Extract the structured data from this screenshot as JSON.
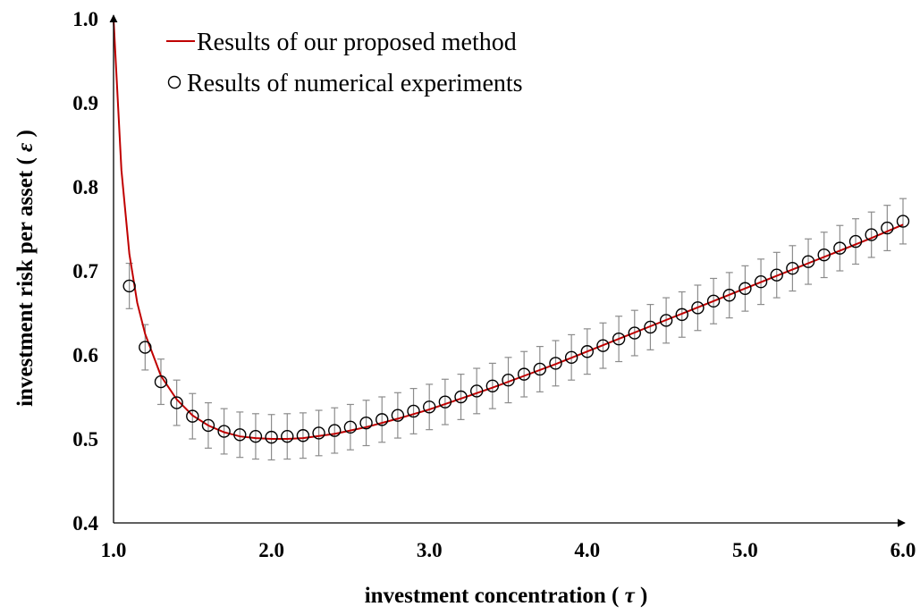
{
  "chart_data": {
    "type": "line",
    "xlabel": {
      "prefix": "investment concentration ( ",
      "symbol": "τ",
      "suffix": " )"
    },
    "ylabel": {
      "prefix": "investment risk per asset ( ",
      "symbol": "ε",
      "suffix": " )"
    },
    "xlim": [
      1.0,
      6.0
    ],
    "ylim": [
      0.4,
      1.0
    ],
    "x_ticks": [
      "1.0",
      "2.0",
      "3.0",
      "4.0",
      "5.0",
      "6.0"
    ],
    "y_ticks": [
      "0.4",
      "0.5",
      "0.6",
      "0.7",
      "0.8",
      "0.9",
      "1.0"
    ],
    "grid": false,
    "legend_position": "top-left",
    "series": [
      {
        "name": "Results of our proposed method",
        "kind": "line",
        "color": "#c00000",
        "x": [
          1.0,
          1.05,
          1.1,
          1.15,
          1.2,
          1.3,
          1.4,
          1.5,
          1.6,
          1.7,
          1.8,
          1.9,
          2.0,
          2.1,
          2.2,
          2.4,
          2.6,
          2.8,
          3.0,
          3.2,
          3.4,
          3.6,
          3.8,
          4.0,
          4.2,
          4.4,
          4.6,
          4.8,
          5.0,
          5.2,
          5.4,
          5.6,
          5.8,
          6.0
        ],
        "y": [
          1.0,
          0.82,
          0.72,
          0.662,
          0.625,
          0.575,
          0.547,
          0.528,
          0.516,
          0.508,
          0.503,
          0.501,
          0.5,
          0.5,
          0.501,
          0.506,
          0.514,
          0.524,
          0.535,
          0.548,
          0.561,
          0.575,
          0.589,
          0.604,
          0.619,
          0.634,
          0.649,
          0.664,
          0.679,
          0.694,
          0.709,
          0.724,
          0.739,
          0.755
        ]
      },
      {
        "name": "Results of numerical experiments",
        "kind": "scatter",
        "color": "#000000",
        "error": 0.027,
        "x": [
          1.1,
          1.2,
          1.3,
          1.4,
          1.5,
          1.6,
          1.7,
          1.8,
          1.9,
          2.0,
          2.1,
          2.2,
          2.3,
          2.4,
          2.5,
          2.6,
          2.7,
          2.8,
          2.9,
          3.0,
          3.1,
          3.2,
          3.3,
          3.4,
          3.5,
          3.6,
          3.7,
          3.8,
          3.9,
          4.0,
          4.1,
          4.2,
          4.3,
          4.4,
          4.5,
          4.6,
          4.7,
          4.8,
          4.9,
          5.0,
          5.1,
          5.2,
          5.3,
          5.4,
          5.5,
          5.6,
          5.7,
          5.8,
          5.9,
          6.0
        ],
        "y": [
          0.682,
          0.609,
          0.568,
          0.543,
          0.527,
          0.516,
          0.509,
          0.505,
          0.503,
          0.502,
          0.503,
          0.504,
          0.507,
          0.51,
          0.514,
          0.519,
          0.523,
          0.528,
          0.533,
          0.538,
          0.544,
          0.55,
          0.557,
          0.563,
          0.57,
          0.577,
          0.583,
          0.59,
          0.597,
          0.604,
          0.611,
          0.619,
          0.626,
          0.633,
          0.641,
          0.648,
          0.656,
          0.664,
          0.671,
          0.679,
          0.687,
          0.695,
          0.703,
          0.711,
          0.719,
          0.727,
          0.735,
          0.743,
          0.751,
          0.759
        ]
      }
    ]
  }
}
